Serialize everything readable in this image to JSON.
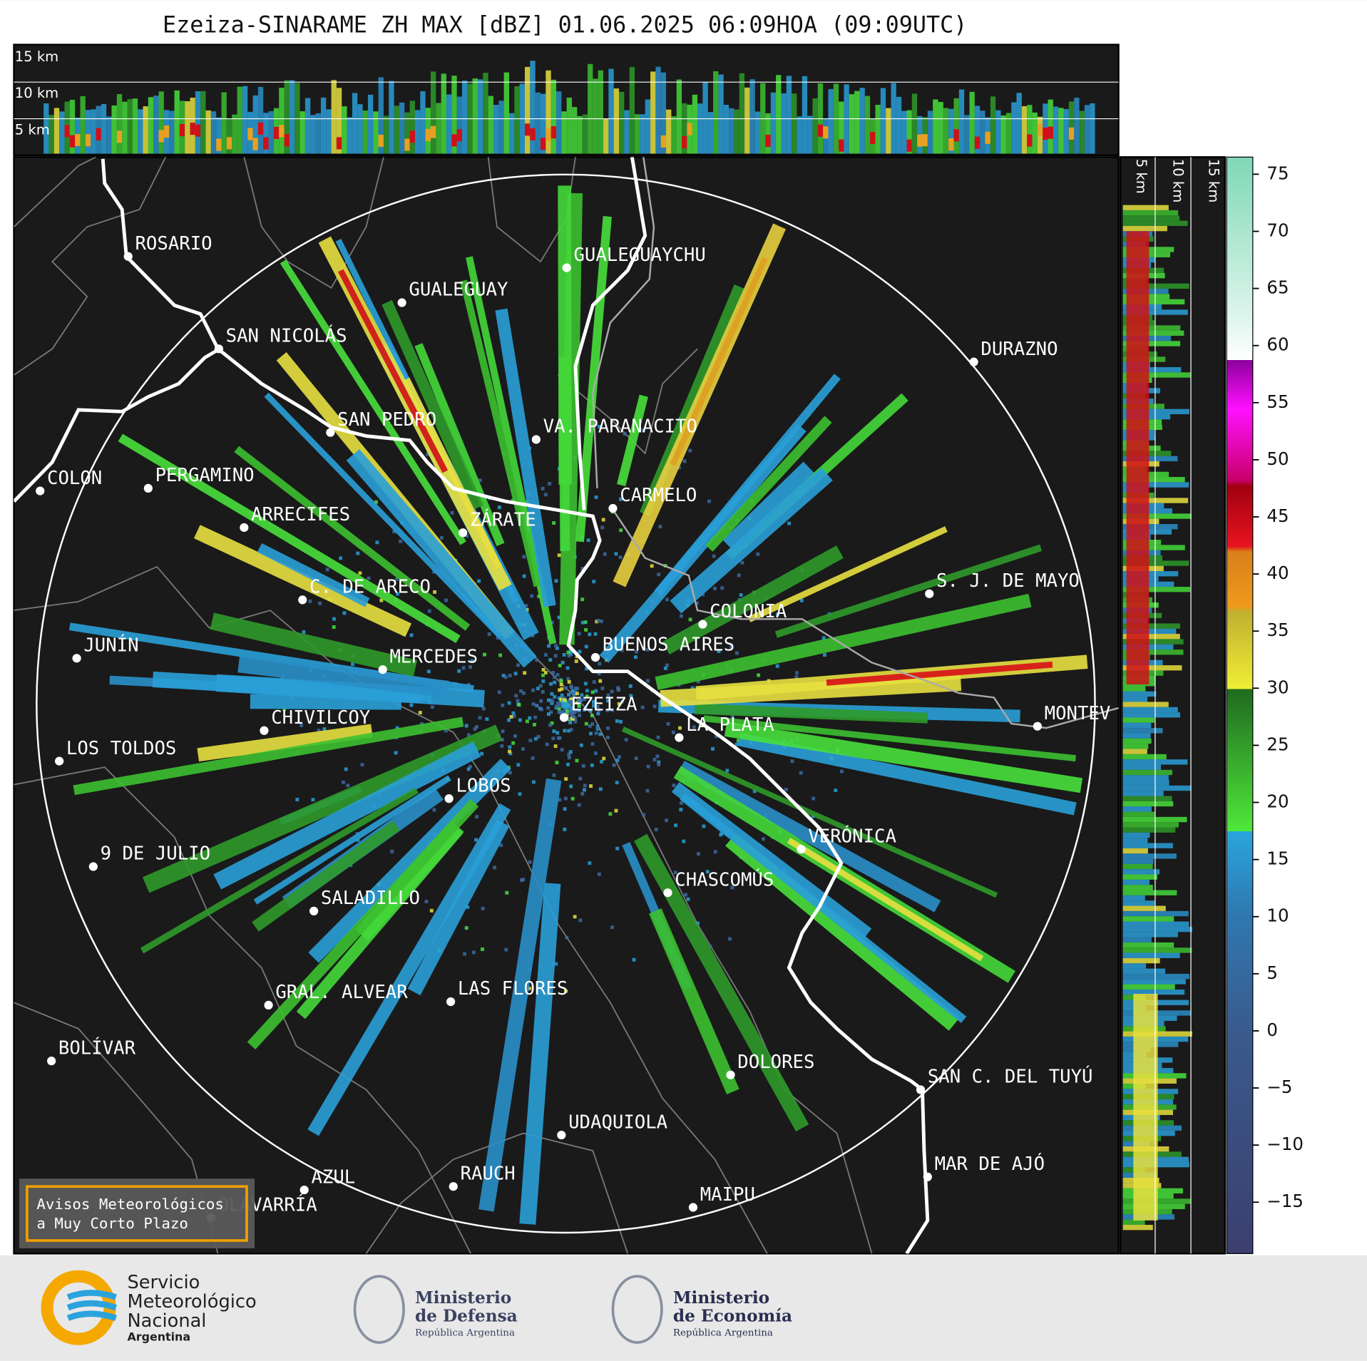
{
  "title": "Ezeiza-SINARAME ZH MAX [dBZ] 01.06.2025 06:09HOA (09:09UTC)",
  "height_labels": [
    "15 km",
    "10 km",
    "5 km"
  ],
  "cities": [
    {
      "name": "ROSARIO"
    },
    {
      "name": "GUALEGUAYCHU"
    },
    {
      "name": "GUALEGUAY"
    },
    {
      "name": "SAN NICOLÁS"
    },
    {
      "name": "DURAZNO"
    },
    {
      "name": "SAN PEDRO"
    },
    {
      "name": "VA. PARANACITO"
    },
    {
      "name": "COLON"
    },
    {
      "name": "PERGAMINO"
    },
    {
      "name": "CARMELO"
    },
    {
      "name": "ARRECIFES"
    },
    {
      "name": "ZÁRATE"
    },
    {
      "name": "C. DE ARECO"
    },
    {
      "name": "S. J. DE MAYO"
    },
    {
      "name": "COLONIA"
    },
    {
      "name": "JUNÍN"
    },
    {
      "name": "BUENOS AIRES"
    },
    {
      "name": "MERCEDES"
    },
    {
      "name": "MONTEV"
    },
    {
      "name": "EZEIZA"
    },
    {
      "name": "CHIVILCOY"
    },
    {
      "name": "LA PLATA"
    },
    {
      "name": "LOS TOLDOS"
    },
    {
      "name": "LOBOS"
    },
    {
      "name": "VERÓNICA"
    },
    {
      "name": "9 DE JULIO"
    },
    {
      "name": "CHASCOMÚS"
    },
    {
      "name": "SALADILLO"
    },
    {
      "name": "GRAL. ALVEAR"
    },
    {
      "name": "LAS FLORES"
    },
    {
      "name": "BOLÍVAR"
    },
    {
      "name": "DOLORES"
    },
    {
      "name": "SAN C. DEL TUYÚ"
    },
    {
      "name": "UDAQUIOLA"
    },
    {
      "name": "MAR DE AJÓ"
    },
    {
      "name": "AZUL"
    },
    {
      "name": "RAUCH"
    },
    {
      "name": "OLAVARRÍA"
    },
    {
      "name": "MAIPU"
    }
  ],
  "colorbar": {
    "lim": [
      -19.5,
      76.5
    ],
    "ticks": [
      75,
      70,
      65,
      60,
      55,
      50,
      45,
      40,
      35,
      30,
      25,
      20,
      15,
      10,
      5,
      0,
      {
        "value": -5,
        "label": "−5"
      },
      {
        "value": -10,
        "label": "−10"
      },
      {
        "value": -15,
        "label": "−15"
      }
    ]
  },
  "warning_box": [
    "Avisos Meteorológicos",
    "a Muy Corto Plazo"
  ],
  "logos": {
    "smn": [
      "Servicio",
      "Meteorológico",
      "Nacional",
      "Argentina"
    ],
    "defensa": [
      "Ministerio",
      "de Defensa",
      "República Argentina"
    ],
    "economia": [
      "Ministerio",
      "de Economía",
      "República Argentina"
    ]
  }
}
